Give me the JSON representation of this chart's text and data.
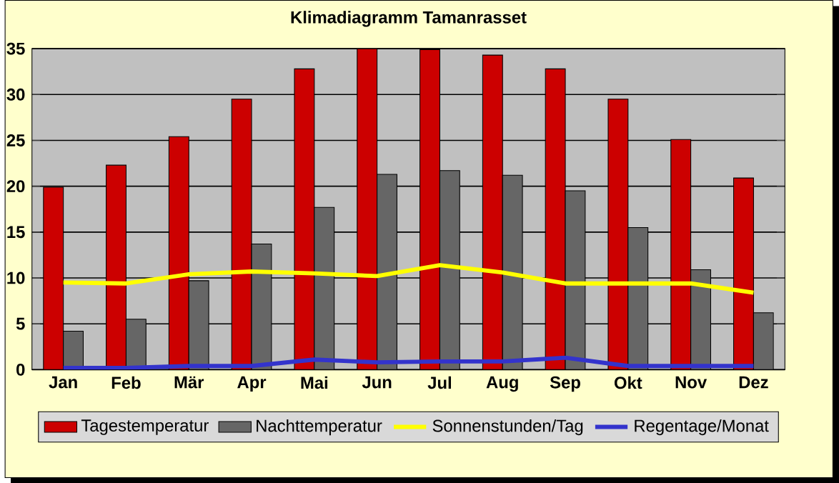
{
  "chart_data": {
    "type": "bar",
    "title": "Klimadiagramm Tamanrasset",
    "categories": [
      "Jan",
      "Feb",
      "Mär",
      "Apr",
      "Mai",
      "Jun",
      "Jul",
      "Aug",
      "Sep",
      "Okt",
      "Nov",
      "Dez"
    ],
    "series": [
      {
        "name": "Tagestemperatur",
        "color": "#cc0000",
        "values": [
          19.9,
          22.3,
          25.4,
          29.5,
          32.8,
          35.0,
          34.9,
          34.3,
          32.8,
          29.5,
          25.1,
          20.9
        ]
      },
      {
        "name": "Nachttemperatur",
        "color": "#666666",
        "values": [
          4.2,
          5.5,
          9.7,
          13.7,
          17.7,
          21.3,
          21.7,
          21.2,
          19.5,
          15.5,
          10.9,
          6.2
        ]
      },
      {
        "name": "Sonnenstunden/Tag",
        "type": "line",
        "color": "#ffff00",
        "values": [
          9.5,
          9.4,
          10.4,
          10.7,
          10.5,
          10.2,
          11.4,
          10.6,
          9.4,
          9.4,
          9.4,
          8.4
        ]
      },
      {
        "name": "Regentage/Monat",
        "type": "line",
        "color": "#3333cc",
        "values": [
          0.2,
          0.2,
          0.4,
          0.4,
          1.1,
          0.8,
          0.9,
          0.9,
          1.3,
          0.4,
          0.4,
          0.4
        ]
      }
    ],
    "ylim": [
      0,
      35
    ],
    "yticks": [
      0,
      5,
      10,
      15,
      20,
      25,
      30,
      35
    ],
    "grid": "y",
    "legend": "bottom"
  }
}
